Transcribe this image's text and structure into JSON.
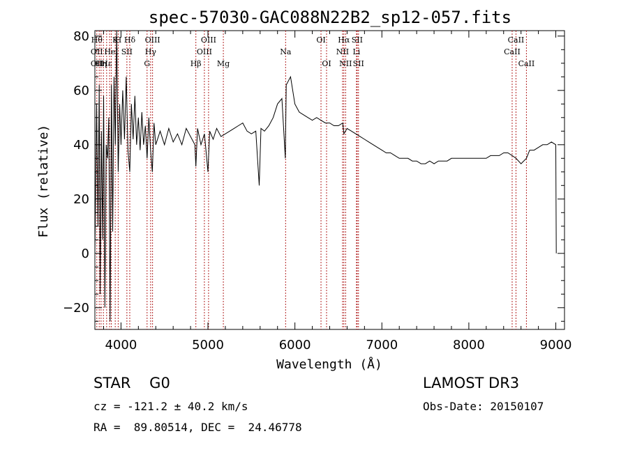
{
  "chart_data": {
    "type": "line",
    "title": "spec-57030-GAC088N22B2_sp12-057.fits",
    "xlabel": "Wavelength (Å)",
    "ylabel": "Flux (relative)",
    "xlim": [
      3700,
      9100
    ],
    "ylim": [
      -28,
      82
    ],
    "xticks": [
      4000,
      5000,
      6000,
      7000,
      8000,
      9000
    ],
    "yticks": [
      -20,
      0,
      20,
      40,
      60,
      80
    ],
    "grid": false,
    "series": [
      {
        "x": [
          3700,
          3720,
          3735,
          3750,
          3760,
          3775,
          3790,
          3800,
          3815,
          3830,
          3845,
          3860,
          3875,
          3890,
          3905,
          3920,
          3935,
          3950,
          3968,
          3985,
          4000,
          4020,
          4040,
          4060,
          4080,
          4101,
          4120,
          4140,
          4160,
          4180,
          4200,
          4220,
          4240,
          4260,
          4280,
          4300,
          4320,
          4340,
          4360,
          4380,
          4400,
          4450,
          4500,
          4550,
          4600,
          4650,
          4700,
          4750,
          4800,
          4850,
          4861,
          4880,
          4920,
          4960,
          5000,
          5020,
          5060,
          5100,
          5150,
          5200,
          5250,
          5300,
          5350,
          5400,
          5450,
          5500,
          5550,
          5590,
          5610,
          5650,
          5700,
          5750,
          5800,
          5850,
          5890,
          5900,
          5950,
          6000,
          6050,
          6100,
          6150,
          6200,
          6250,
          6300,
          6350,
          6400,
          6450,
          6500,
          6550,
          6563,
          6600,
          6650,
          6700,
          6750,
          6800,
          6850,
          6900,
          6950,
          7000,
          7050,
          7100,
          7150,
          7200,
          7250,
          7300,
          7350,
          7400,
          7450,
          7500,
          7550,
          7600,
          7650,
          7700,
          7750,
          7800,
          7850,
          7900,
          7950,
          8000,
          8050,
          8100,
          8150,
          8200,
          8250,
          8300,
          8350,
          8400,
          8450,
          8498,
          8542,
          8600,
          8662,
          8700,
          8750,
          8800,
          8850,
          8900,
          8950,
          9000,
          9005
        ],
        "y": [
          0,
          55,
          10,
          62,
          -15,
          45,
          5,
          58,
          -20,
          40,
          35,
          50,
          -25,
          62,
          8,
          65,
          40,
          82,
          30,
          55,
          40,
          60,
          42,
          65,
          38,
          30,
          55,
          42,
          58,
          40,
          50,
          38,
          52,
          40,
          47,
          35,
          50,
          38,
          30,
          48,
          40,
          45,
          40,
          46,
          41,
          44,
          40,
          46,
          43,
          40,
          32,
          46,
          40,
          44,
          30,
          45,
          42,
          46,
          43,
          44,
          45,
          46,
          47,
          48,
          45,
          44,
          45,
          25,
          46,
          45,
          47,
          50,
          55,
          57,
          35,
          62,
          65,
          55,
          52,
          51,
          50,
          49,
          50,
          49,
          48,
          48,
          47,
          47,
          48,
          44,
          46,
          45,
          44,
          43,
          42,
          41,
          40,
          39,
          38,
          37,
          37,
          36,
          35,
          35,
          35,
          34,
          34,
          33,
          33,
          34,
          33,
          34,
          34,
          34,
          35,
          35,
          35,
          35,
          35,
          35,
          35,
          35,
          35,
          36,
          36,
          36,
          37,
          37,
          36,
          35,
          33,
          35,
          38,
          38,
          39,
          40,
          40,
          41,
          40,
          0
        ]
      }
    ],
    "lines": [
      {
        "x": 3722,
        "top": "Hθ",
        "mid": "OII",
        "bot": "OII"
      },
      {
        "x": 3750,
        "top": "",
        "mid": "",
        "bot": ""
      },
      {
        "x": 3771,
        "top": "",
        "mid": "",
        "bot": "Hη"
      },
      {
        "x": 3798,
        "top": "",
        "mid": "",
        "bot": ""
      },
      {
        "x": 3835,
        "top": "",
        "mid": "",
        "bot": "Hε"
      },
      {
        "x": 3869,
        "top": "",
        "mid": "",
        "bot": ""
      },
      {
        "x": 3889,
        "top": "",
        "mid": "HeI",
        "bot": ""
      },
      {
        "x": 3934,
        "top": "K",
        "mid": "",
        "bot": ""
      },
      {
        "x": 3968,
        "top": "H",
        "mid": "",
        "bot": ""
      },
      {
        "x": 4068,
        "top": "",
        "mid": "SII",
        "bot": ""
      },
      {
        "x": 4101,
        "top": "Hδ",
        "mid": "",
        "bot": ""
      },
      {
        "x": 4300,
        "top": "",
        "mid": "",
        "bot": "G"
      },
      {
        "x": 4341,
        "top": "",
        "mid": "Hγ",
        "bot": ""
      },
      {
        "x": 4363,
        "top": "OIII",
        "mid": "",
        "bot": ""
      },
      {
        "x": 4861,
        "top": "",
        "mid": "",
        "bot": "Hβ"
      },
      {
        "x": 4959,
        "top": "",
        "mid": "OIII",
        "bot": ""
      },
      {
        "x": 5007,
        "top": "OIII",
        "mid": "",
        "bot": ""
      },
      {
        "x": 5177,
        "top": "",
        "mid": "",
        "bot": "Mg"
      },
      {
        "x": 5893,
        "top": "",
        "mid": "Na",
        "bot": ""
      },
      {
        "x": 6300,
        "top": "OI",
        "mid": "",
        "bot": ""
      },
      {
        "x": 6364,
        "top": "",
        "mid": "",
        "bot": "OI"
      },
      {
        "x": 6548,
        "top": "",
        "mid": "NII",
        "bot": ""
      },
      {
        "x": 6563,
        "top": "Hα",
        "mid": "",
        "bot": ""
      },
      {
        "x": 6583,
        "top": "",
        "mid": "",
        "bot": "NII"
      },
      {
        "x": 6708,
        "top": "",
        "mid": "Li",
        "bot": ""
      },
      {
        "x": 6716,
        "top": "SII",
        "mid": "",
        "bot": ""
      },
      {
        "x": 6731,
        "top": "",
        "mid": "",
        "bot": "SII"
      },
      {
        "x": 8498,
        "top": "",
        "mid": "CaII",
        "bot": ""
      },
      {
        "x": 8542,
        "top": "CaII",
        "mid": "",
        "bot": ""
      },
      {
        "x": 8662,
        "top": "",
        "mid": "",
        "bot": "CaII"
      }
    ]
  },
  "footer": {
    "class_label": "STAR    G0",
    "survey": "LAMOST DR3",
    "cz": "cz = -121.2 ± 40.2 km/s",
    "obs_date": "Obs-Date: 20150107",
    "radec": "RA =  89.80514, DEC =  24.46778"
  },
  "colors": {
    "spectrum": "#000000",
    "line_marker": "#b22222",
    "axes": "#000000"
  }
}
